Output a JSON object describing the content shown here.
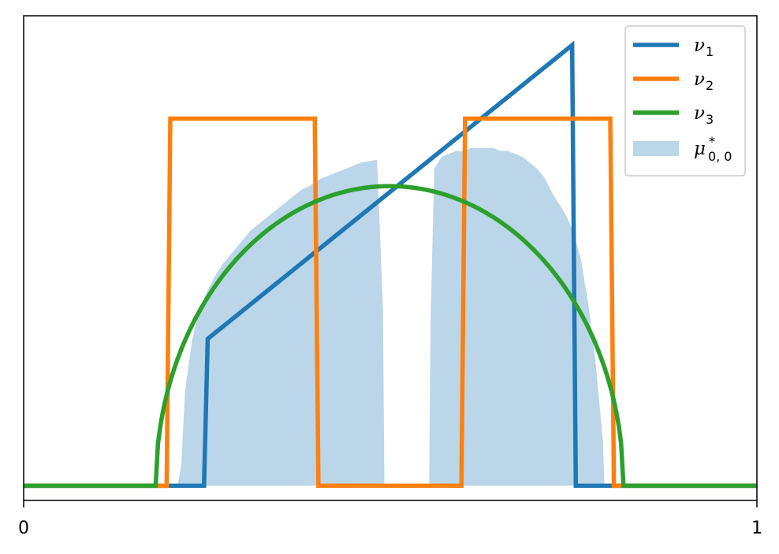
{
  "chart_data": {
    "type": "line",
    "title": "",
    "xlabel": "",
    "ylabel": "",
    "xlim": [
      0,
      1
    ],
    "ylim": [
      -0.05,
      1.6
    ],
    "x_ticks": [
      0,
      1
    ],
    "x_tick_labels": [
      "0",
      "1"
    ],
    "y_ticks": [],
    "grid": false,
    "legend_position": "top-right",
    "series": [
      {
        "name": "ν",
        "name_sub": "1",
        "kind": "line",
        "color": "#1f77b4",
        "x": [
          0.0,
          0.246,
          0.251,
          0.748,
          0.753,
          1.0
        ],
        "y": [
          0.0,
          0.0,
          0.5,
          1.5,
          0.0,
          0.0
        ]
      },
      {
        "name": "ν",
        "name_sub": "2",
        "kind": "line",
        "color": "#ff7f0e",
        "x": [
          0.0,
          0.195,
          0.2,
          0.397,
          0.402,
          0.597,
          0.602,
          0.8,
          0.805,
          1.0
        ],
        "y": [
          0.0,
          0.0,
          1.25,
          1.25,
          0.0,
          0.0,
          1.25,
          1.25,
          0.0,
          0.0
        ]
      },
      {
        "name": "ν",
        "name_sub": "3",
        "kind": "semicircle",
        "color": "#2ca02c",
        "x_start": 0.18,
        "x_end": 0.818,
        "peak": 1.02
      },
      {
        "name": "μ",
        "name_sub": "0, 0",
        "name_sup": "*",
        "kind": "area",
        "color": "#bad6e8",
        "x": [
          0.2,
          0.21,
          0.215,
          0.22,
          0.23,
          0.24,
          0.25,
          0.26,
          0.27,
          0.28,
          0.29,
          0.3,
          0.31,
          0.32,
          0.33,
          0.34,
          0.35,
          0.36,
          0.37,
          0.38,
          0.39,
          0.4,
          0.41,
          0.42,
          0.43,
          0.44,
          0.45,
          0.46,
          0.482,
          0.49,
          0.492,
          0.553,
          0.555,
          0.56,
          0.565,
          0.57,
          0.58,
          0.59,
          0.6,
          0.61,
          0.62,
          0.63,
          0.64,
          0.65,
          0.66,
          0.67,
          0.68,
          0.69,
          0.7,
          0.71,
          0.72,
          0.73,
          0.74,
          0.75,
          0.76,
          0.77,
          0.78,
          0.79,
          0.792
        ],
        "y": [
          0.0,
          0.0,
          0.07,
          0.32,
          0.5,
          0.6,
          0.66,
          0.71,
          0.75,
          0.78,
          0.81,
          0.84,
          0.87,
          0.89,
          0.91,
          0.93,
          0.95,
          0.97,
          0.99,
          1.01,
          1.02,
          1.04,
          1.05,
          1.06,
          1.07,
          1.08,
          1.09,
          1.1,
          1.11,
          0.6,
          0.0,
          0.0,
          0.57,
          1.08,
          1.1,
          1.12,
          1.13,
          1.14,
          1.14,
          1.15,
          1.15,
          1.15,
          1.15,
          1.14,
          1.14,
          1.13,
          1.12,
          1.1,
          1.08,
          1.05,
          1.0,
          0.96,
          0.92,
          0.86,
          0.77,
          0.62,
          0.42,
          0.15,
          0.0
        ]
      }
    ]
  }
}
